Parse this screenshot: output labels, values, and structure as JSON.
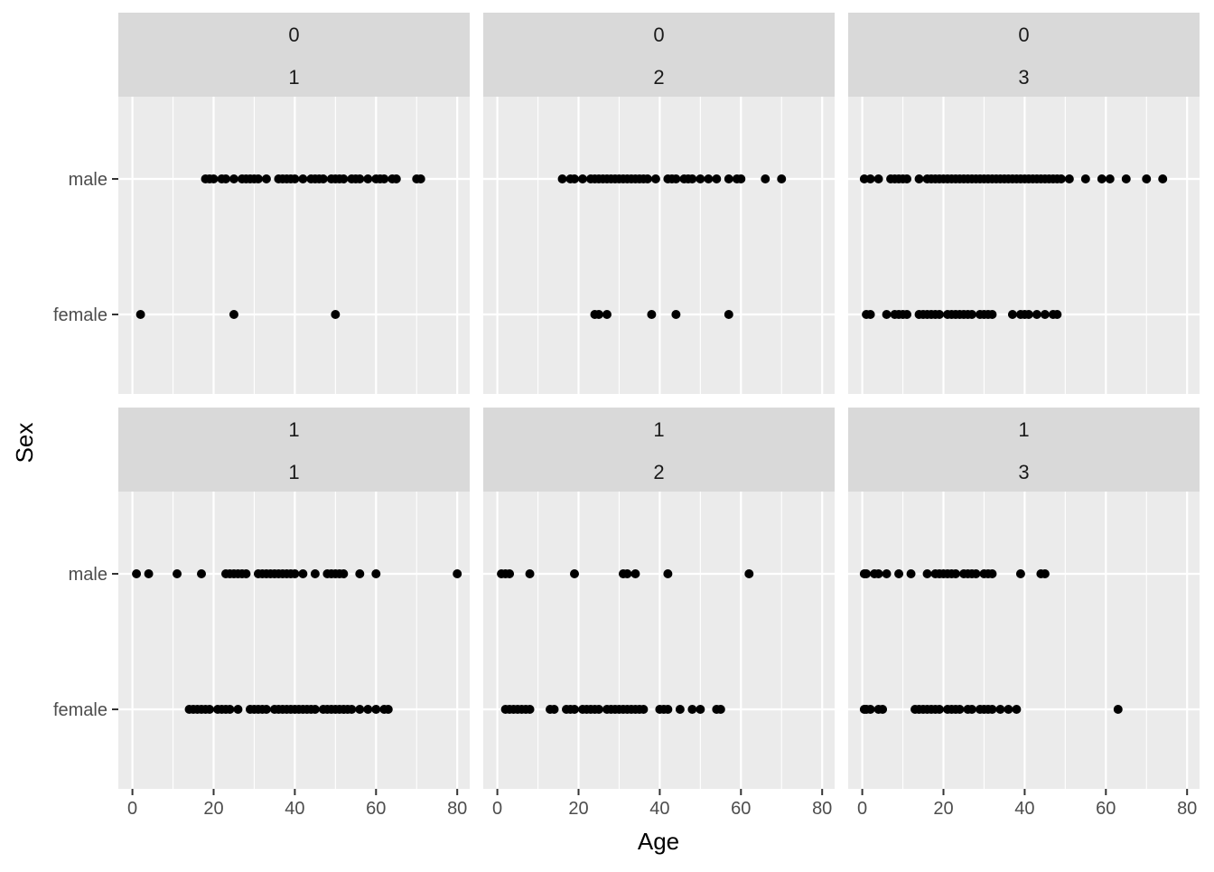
{
  "chart_data": {
    "type": "scatter",
    "xlabel": "Age",
    "ylabel": "Sex",
    "xlim": [
      0,
      80
    ],
    "x_ticks": [
      "0",
      "20",
      "40",
      "60",
      "80"
    ],
    "y_categories": [
      "male",
      "female"
    ],
    "grid": true,
    "facet_rows": [
      "0",
      "1"
    ],
    "facet_cols": [
      "1",
      "2",
      "3"
    ],
    "panels": [
      {
        "row_label": "0",
        "col_label": "1",
        "male": [
          18,
          19,
          20,
          22,
          23,
          25,
          27,
          28,
          29,
          30,
          31,
          33,
          36,
          37,
          38,
          39,
          40,
          42,
          44,
          45,
          46,
          47,
          49,
          50,
          51,
          52,
          54,
          55,
          56,
          58,
          60,
          61,
          62,
          64,
          65,
          70,
          71
        ],
        "female": [
          2,
          25,
          50
        ]
      },
      {
        "row_label": "0",
        "col_label": "2",
        "male": [
          16,
          18,
          19,
          21,
          23,
          24,
          25,
          26,
          27,
          28,
          29,
          30,
          31,
          32,
          33,
          34,
          35,
          36,
          37,
          39,
          42,
          43,
          44,
          46,
          47,
          48,
          50,
          52,
          54,
          57,
          59,
          60,
          66,
          70
        ],
        "female": [
          24,
          25,
          27,
          38,
          44,
          57
        ]
      },
      {
        "row_label": "0",
        "col_label": "3",
        "male": [
          0.5,
          2,
          4,
          7,
          8,
          9,
          10,
          11,
          14,
          16,
          17,
          18,
          19,
          20,
          21,
          22,
          23,
          24,
          25,
          26,
          27,
          28,
          29,
          30,
          31,
          32,
          33,
          34,
          35,
          36,
          37,
          38,
          39,
          40,
          41,
          42,
          43,
          44,
          45,
          46,
          47,
          48,
          49,
          51,
          55,
          59,
          61,
          65,
          70,
          74
        ],
        "female": [
          1,
          2,
          6,
          8,
          9,
          10,
          11,
          14,
          15,
          16,
          17,
          18,
          19,
          21,
          22,
          23,
          24,
          25,
          26,
          27,
          29,
          30,
          31,
          32,
          37,
          39,
          40,
          41,
          43,
          45,
          47,
          48
        ]
      },
      {
        "row_label": "1",
        "col_label": "1",
        "male": [
          1,
          4,
          11,
          17,
          23,
          24,
          25,
          26,
          27,
          28,
          31,
          32,
          33,
          34,
          35,
          36,
          37,
          38,
          39,
          40,
          42,
          45,
          48,
          49,
          50,
          51,
          52,
          56,
          60,
          80
        ],
        "female": [
          14,
          15,
          16,
          17,
          18,
          19,
          21,
          22,
          23,
          24,
          26,
          29,
          30,
          31,
          32,
          33,
          35,
          36,
          37,
          38,
          39,
          40,
          41,
          42,
          43,
          44,
          45,
          47,
          48,
          49,
          50,
          51,
          52,
          53,
          54,
          56,
          58,
          60,
          62,
          63
        ]
      },
      {
        "row_label": "1",
        "col_label": "2",
        "male": [
          1,
          2,
          3,
          8,
          19,
          31,
          32,
          34,
          42,
          62
        ],
        "female": [
          2,
          3,
          4,
          5,
          6,
          7,
          8,
          13,
          14,
          17,
          18,
          19,
          21,
          22,
          23,
          24,
          25,
          27,
          28,
          29,
          30,
          31,
          32,
          33,
          34,
          35,
          36,
          40,
          41,
          42,
          45,
          48,
          50,
          54,
          55
        ]
      },
      {
        "row_label": "1",
        "col_label": "3",
        "male": [
          0.5,
          1,
          3,
          4,
          6,
          9,
          12,
          16,
          18,
          19,
          20,
          21,
          22,
          23,
          25,
          26,
          27,
          28,
          30,
          31,
          32,
          39,
          44,
          45
        ],
        "female": [
          0.5,
          1,
          2,
          4,
          5,
          13,
          14,
          15,
          16,
          17,
          18,
          19,
          21,
          22,
          23,
          24,
          26,
          27,
          29,
          30,
          31,
          32,
          34,
          36,
          38,
          63
        ]
      }
    ]
  }
}
